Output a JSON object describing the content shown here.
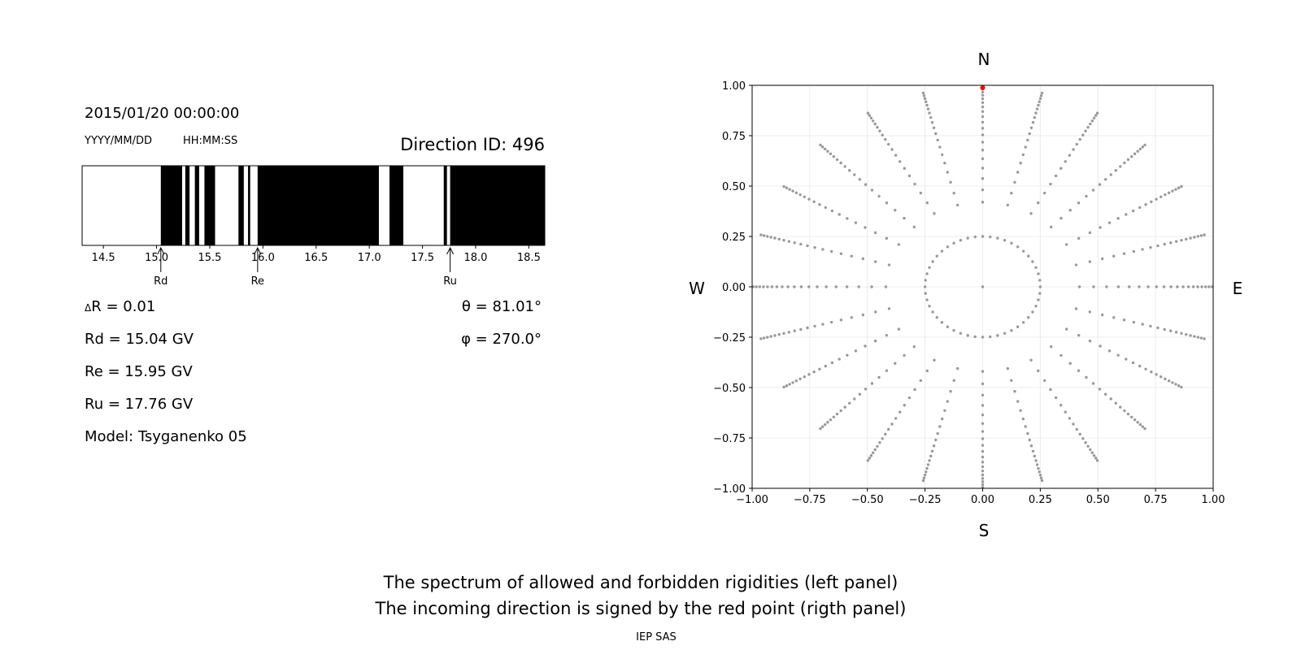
{
  "header": {
    "datetime": "2015/01/20 00:00:00",
    "date_format": "YYYY/MM/DD",
    "time_format": "HH:MM:SS",
    "direction_id": "Direction ID: 496"
  },
  "params": {
    "dR": "R = 0.01",
    "Rd": "Rd = 15.04 GV",
    "Re": "Re = 15.95 GV",
    "Ru": "Ru = 17.76 GV",
    "model": "Model: Tsyganenko 05",
    "theta": "θ = 81.01°",
    "phi": "φ = 270.0°"
  },
  "compass": {
    "N": "N",
    "S": "S",
    "W": "W",
    "E": "E"
  },
  "caption": {
    "line1": "The spectrum of allowed and forbidden rigidities (left panel)",
    "line2": "The incoming direction is signed by the red point (rigth panel)",
    "credit": "IEP SAS"
  },
  "colors": {
    "forbidden": "#000000",
    "allowed": "#ffffff",
    "grid_points": "#999999",
    "incoming_point": "#ff0000"
  },
  "chart_data": [
    {
      "type": "bar",
      "subtype": "rigidity-spectrum",
      "xlim": [
        14.3,
        18.65
      ],
      "x_ticks": [
        14.5,
        15.0,
        15.5,
        16.0,
        16.5,
        17.0,
        17.5,
        18.0,
        18.5
      ],
      "x_tick_labels": [
        "14.5",
        "15.0",
        "15.5",
        "16.0",
        "16.5",
        "17.0",
        "17.5",
        "18.0",
        "18.5"
      ],
      "forbidden_intervals": [
        [
          15.04,
          15.24
        ],
        [
          15.27,
          15.31
        ],
        [
          15.36,
          15.4
        ],
        [
          15.45,
          15.55
        ],
        [
          15.77,
          15.82
        ],
        [
          15.86,
          15.88
        ],
        [
          15.95,
          17.09
        ],
        [
          17.19,
          17.32
        ],
        [
          17.7,
          17.73
        ],
        [
          17.76,
          18.65
        ]
      ],
      "markers": [
        {
          "label": "Rd",
          "value": 15.04
        },
        {
          "label": "Re",
          "value": 15.95
        },
        {
          "label": "Ru",
          "value": 17.76
        }
      ]
    },
    {
      "type": "scatter",
      "subtype": "direction-grid",
      "xlim": [
        -1.0,
        1.0
      ],
      "ylim": [
        -1.0,
        1.0
      ],
      "x_tick_labels": [
        "−1.00",
        "−0.75",
        "−0.50",
        "−0.25",
        "0.00",
        "0.25",
        "0.50",
        "0.75",
        "1.00"
      ],
      "y_tick_labels": [
        "1.00",
        "0.75",
        "0.50",
        "0.25",
        "0.00",
        "−0.25",
        "−0.50",
        "−0.75",
        "−1.00"
      ],
      "grid": true,
      "radial_lines_count": 24,
      "inner_ring_radius": 0.25,
      "incoming_point": {
        "x": 0.0,
        "y": 0.988
      }
    }
  ]
}
